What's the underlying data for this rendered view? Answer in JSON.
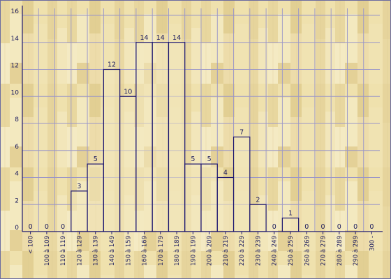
{
  "chart_data": {
    "type": "bar",
    "categories": [
      "< 100",
      "100 à 109",
      "110 à 119",
      "120 à 129",
      "130 à 139",
      "140 à 149",
      "150 à 159",
      "160 à 169",
      "170 à 179",
      "180 à 189",
      "190 à 199",
      "200 à 209",
      "210 à 219",
      "220 à 229",
      "230 à 239",
      "240 à 249",
      "250 à 259",
      "260 à 269",
      "270 à 279",
      "280 à 289",
      "290 à 299",
      "300 -"
    ],
    "values": [
      0,
      0,
      0,
      3,
      5,
      12,
      10,
      14,
      14,
      14,
      5,
      5,
      4,
      7,
      2,
      0,
      1,
      0,
      0,
      0,
      0,
      0
    ],
    "title": "",
    "xlabel": "",
    "ylabel": "",
    "ylim": [
      0,
      16
    ],
    "yticks": [
      0,
      2,
      4,
      6,
      8,
      10,
      12,
      14,
      16
    ],
    "grid": true,
    "legend": "none",
    "colors": {
      "background": "#efe1ad",
      "wood_light": "#f1e6b8",
      "wood_dark": "#dcc98d",
      "grid": "#9a96c8",
      "bar_fill": "#f2e7bd",
      "bar_stroke": "#1e1870",
      "text": "#1a1a5e",
      "frame": "#6a6aa0"
    }
  }
}
